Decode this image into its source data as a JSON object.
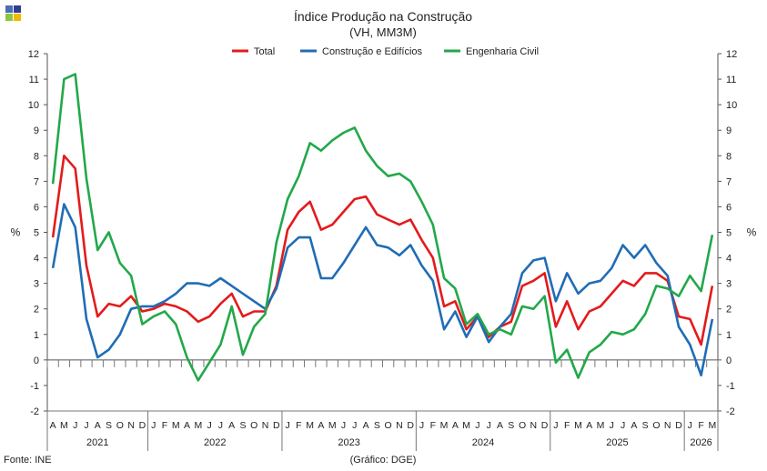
{
  "logo": {
    "colors": [
      "#4a6db5",
      "#2e3f8f",
      "#8cc63f",
      "#f5b800"
    ]
  },
  "chart_data": {
    "type": "line",
    "title": "Índice Produção na Construção",
    "subtitle": "(VH, MM3M)",
    "ylabel_left": "%",
    "ylabel_right": "%",
    "ylim": [
      -2,
      12
    ],
    "yticks": [
      12,
      11,
      10,
      9,
      8,
      7,
      6,
      5,
      4,
      3,
      2,
      1,
      0,
      -1,
      -2
    ],
    "grid": false,
    "legend_position": "top",
    "month_labels": [
      "A",
      "M",
      "J",
      "J",
      "A",
      "S",
      "O",
      "N",
      "D",
      "J",
      "F",
      "M",
      "A",
      "M",
      "J",
      "J",
      "A",
      "S",
      "O",
      "N",
      "D",
      "J",
      "F",
      "M",
      "A",
      "M",
      "J",
      "J",
      "A",
      "S",
      "O",
      "N",
      "D",
      "J",
      "F",
      "M",
      "A",
      "M",
      "J",
      "J",
      "A",
      "S",
      "O",
      "N",
      "D",
      "J",
      "F",
      "M",
      "A",
      "M",
      "J",
      "J",
      "A",
      "S",
      "O",
      "N",
      "D",
      "J",
      "F",
      "M"
    ],
    "years": [
      {
        "label": "2021",
        "start": 0,
        "end": 8
      },
      {
        "label": "2022",
        "start": 9,
        "end": 20
      },
      {
        "label": "2023",
        "start": 21,
        "end": 32
      },
      {
        "label": "2024",
        "start": 33,
        "end": 44
      },
      {
        "label": "2025",
        "start": 45,
        "end": 56
      },
      {
        "label": "2026",
        "start": 57,
        "end": 59
      }
    ],
    "series": [
      {
        "name": "Total",
        "color": "#e41a1c",
        "values": [
          4.8,
          8.0,
          7.5,
          3.7,
          1.7,
          2.2,
          2.1,
          2.5,
          1.9,
          2.0,
          2.2,
          2.1,
          1.9,
          1.5,
          1.7,
          2.2,
          2.6,
          1.7,
          1.9,
          1.9,
          2.9,
          5.1,
          5.8,
          6.2,
          5.1,
          5.3,
          5.8,
          6.3,
          6.4,
          5.7,
          5.5,
          5.3,
          5.5,
          4.7,
          4.0,
          2.1,
          2.3,
          1.2,
          1.7,
          0.9,
          1.3,
          1.5,
          2.9,
          3.1,
          3.4,
          1.3,
          2.3,
          1.2,
          1.9,
          2.1,
          2.6,
          3.1,
          2.9,
          3.4,
          3.4,
          3.1,
          1.7,
          1.6,
          0.6,
          2.9
        ]
      },
      {
        "name": "Construção e Edifícios",
        "color": "#1f6db5",
        "values": [
          3.6,
          6.1,
          5.2,
          1.6,
          0.1,
          0.4,
          1.0,
          2.0,
          2.1,
          2.1,
          2.3,
          2.6,
          3.0,
          3.0,
          2.9,
          3.2,
          2.9,
          2.6,
          2.3,
          2.0,
          2.8,
          4.4,
          4.8,
          4.8,
          3.2,
          3.2,
          3.8,
          4.5,
          5.2,
          4.5,
          4.4,
          4.1,
          4.5,
          3.7,
          3.1,
          1.2,
          1.9,
          0.9,
          1.7,
          0.7,
          1.3,
          1.8,
          3.4,
          3.9,
          4.0,
          2.3,
          3.4,
          2.6,
          3.0,
          3.1,
          3.6,
          4.5,
          4.0,
          4.5,
          3.8,
          3.3,
          1.3,
          0.6,
          -0.6,
          1.6
        ]
      },
      {
        "name": "Engenharia Civil",
        "color": "#22a84a",
        "values": [
          6.9,
          11.0,
          11.2,
          7.1,
          4.3,
          5.0,
          3.8,
          3.3,
          1.4,
          1.7,
          1.9,
          1.4,
          0.1,
          -0.8,
          -0.1,
          0.6,
          2.1,
          0.2,
          1.3,
          1.8,
          4.6,
          6.3,
          7.2,
          8.5,
          8.2,
          8.6,
          8.9,
          9.1,
          8.2,
          7.6,
          7.2,
          7.3,
          7.0,
          6.2,
          5.3,
          3.2,
          2.8,
          1.4,
          1.8,
          1.0,
          1.2,
          1.0,
          2.1,
          2.0,
          2.5,
          -0.1,
          0.4,
          -0.7,
          0.3,
          0.6,
          1.1,
          1.0,
          1.2,
          1.8,
          2.9,
          2.8,
          2.5,
          3.3,
          2.7,
          4.9
        ]
      }
    ]
  },
  "footer": {
    "source": "Fonte: INE",
    "credit": "(Gráfico: DGE)"
  }
}
